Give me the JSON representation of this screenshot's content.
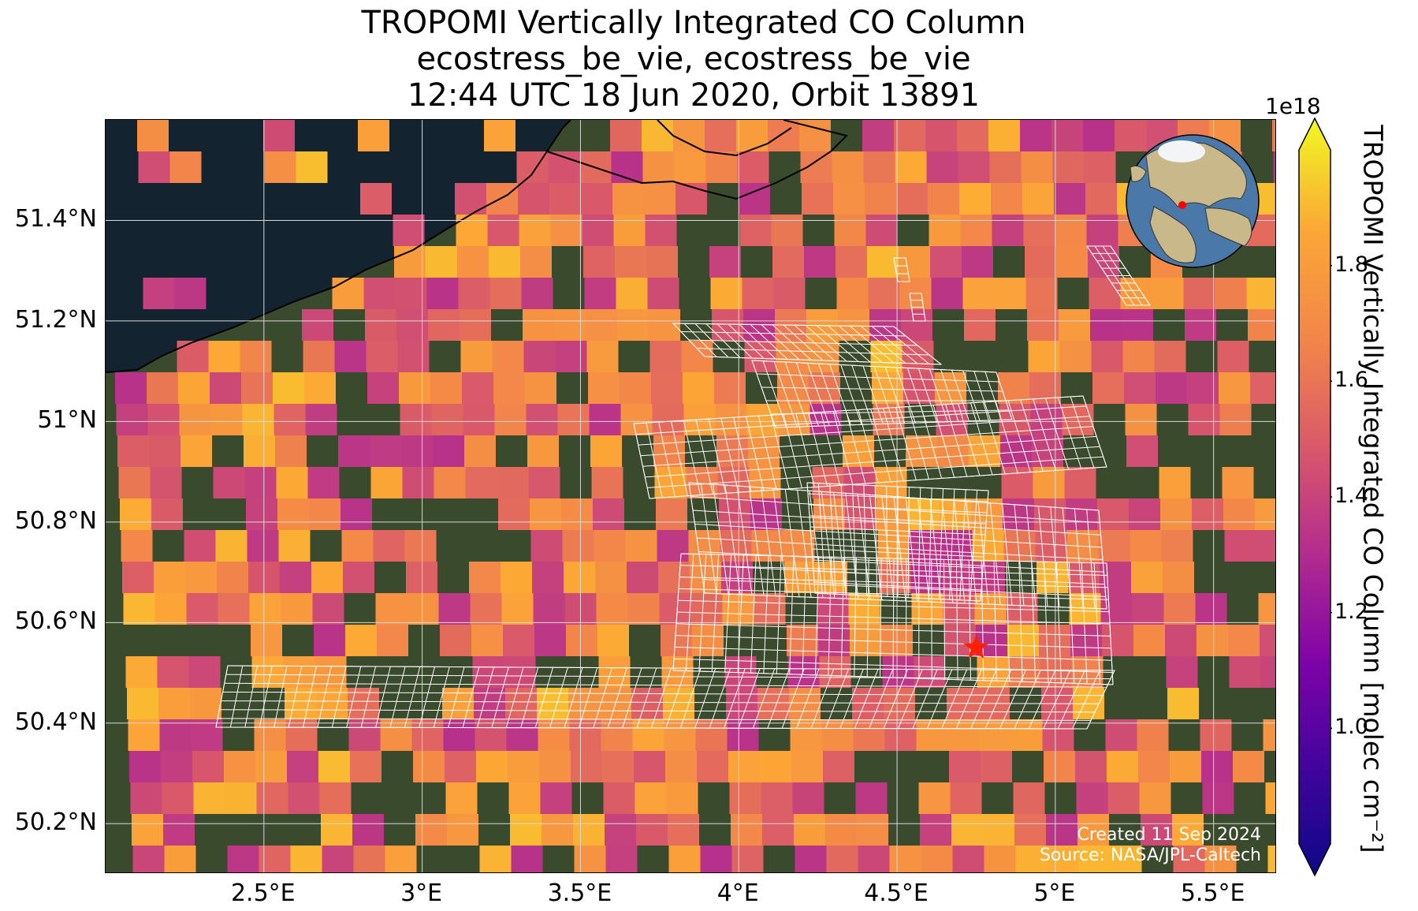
{
  "title_lines": [
    "TROPOMI Vertically Integrated CO Column",
    "ecostress_be_vie, ecostress_be_vie",
    "12:44 UTC 18 Jun 2020, Orbit 13891"
  ],
  "map": {
    "lon_range": [
      2.0,
      5.7
    ],
    "lat_range": [
      50.1,
      51.6
    ],
    "lat_ticks": [
      {
        "value": 51.4,
        "label": "51.4°N"
      },
      {
        "value": 51.2,
        "label": "51.2°N"
      },
      {
        "value": 51.0,
        "label": "51°N"
      },
      {
        "value": 50.8,
        "label": "50.8°N"
      },
      {
        "value": 50.6,
        "label": "50.6°N"
      },
      {
        "value": 50.4,
        "label": "50.4°N"
      },
      {
        "value": 50.2,
        "label": "50.2°N"
      }
    ],
    "lon_ticks": [
      {
        "value": 2.5,
        "label": "2.5°E"
      },
      {
        "value": 3.0,
        "label": "3°E"
      },
      {
        "value": 3.5,
        "label": "3.5°E"
      },
      {
        "value": 4.0,
        "label": "4°E"
      },
      {
        "value": 4.5,
        "label": "4.5°E"
      },
      {
        "value": 5.0,
        "label": "5°E"
      },
      {
        "value": 5.5,
        "label": "5.5°E"
      }
    ],
    "site_marker": {
      "lon": 4.75,
      "lat": 50.55,
      "color": "#ff2000"
    },
    "sea_color": "#132430",
    "land_color": "#3a4a2c",
    "gridline_color": "#d8d8d8",
    "swath_color": "#ffffff"
  },
  "colorbar": {
    "label": "TROPOMI Vertically Integrated CO Column [molec cm⁻²]",
    "exponent": "1e18",
    "range": [
      0.8,
      2.0
    ],
    "ticks": [
      {
        "value": 1.0,
        "label": "1.0"
      },
      {
        "value": 1.2,
        "label": "1.2"
      },
      {
        "value": 1.4,
        "label": "1.4"
      },
      {
        "value": 1.6,
        "label": "1.6"
      },
      {
        "value": 1.8,
        "label": "1.8"
      }
    ],
    "colormap": "plasma",
    "extend": "both"
  },
  "inset_globe": {
    "ocean_color": "#4a78a8",
    "land_color": "#c9b98a",
    "marker_color": "#ff0000"
  },
  "credits": {
    "created": "Created 11 Sep 2024",
    "source": "Source: NASA/JPL-Caltech"
  }
}
